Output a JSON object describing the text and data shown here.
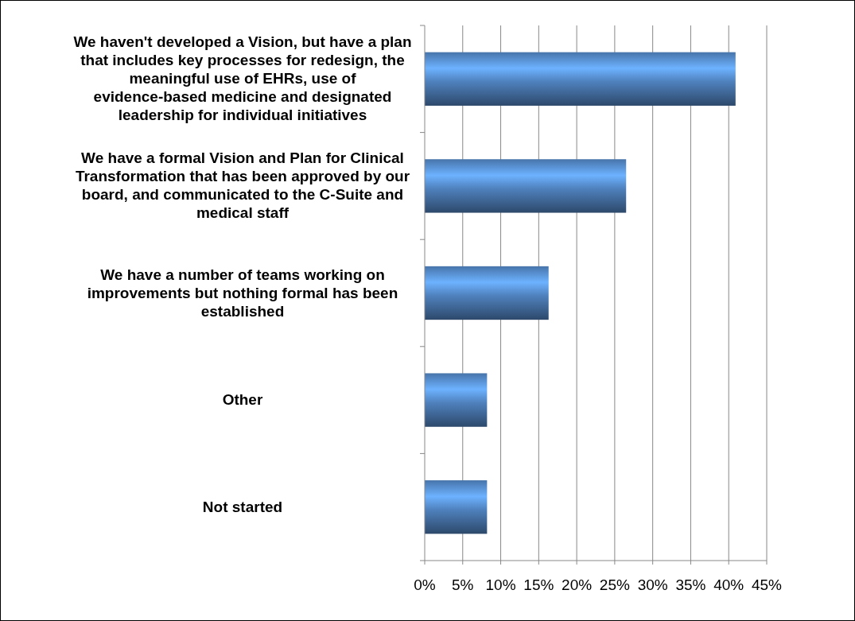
{
  "chart_data": {
    "type": "bar",
    "orientation": "horizontal",
    "categories": [
      "We haven't developed a Vision, but have a plan that includes key processes for redesign, the meaningful use of EHRs, use of evidence-based medicine and designated leadership for individual initiatives",
      "We have a formal Vision and Plan for Clinical Transformation that has been approved by our board, and communicated to the C-Suite and medical staff",
      "We have a number of teams working on improvements but nothing formal has been established",
      "Other",
      "Not started"
    ],
    "values": [
      40.9,
      26.5,
      16.3,
      8.2,
      8.2
    ],
    "color": "#4f81bd",
    "xlim": [
      0,
      45
    ],
    "xticks": [
      {
        "value": 0,
        "label": "0%"
      },
      {
        "value": 5,
        "label": "5%"
      },
      {
        "value": 10,
        "label": "10%"
      },
      {
        "value": 15,
        "label": "15%"
      },
      {
        "value": 20,
        "label": "20%"
      },
      {
        "value": 25,
        "label": "25%"
      },
      {
        "value": 30,
        "label": "30%"
      },
      {
        "value": 35,
        "label": "35%"
      },
      {
        "value": 40,
        "label": "40%"
      },
      {
        "value": 45,
        "label": "45%"
      }
    ],
    "grid": "x"
  }
}
